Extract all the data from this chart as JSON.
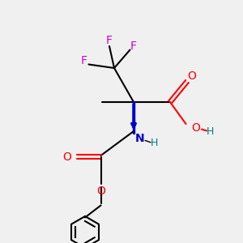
{
  "bg_color": "#f0f0f0",
  "atom_colors": {
    "C": "#000000",
    "O": "#ff0000",
    "N": "#0000cc",
    "F": "#cc00cc",
    "H": "#008080"
  },
  "figure_size": [
    3.0,
    3.0
  ],
  "dpi": 100
}
